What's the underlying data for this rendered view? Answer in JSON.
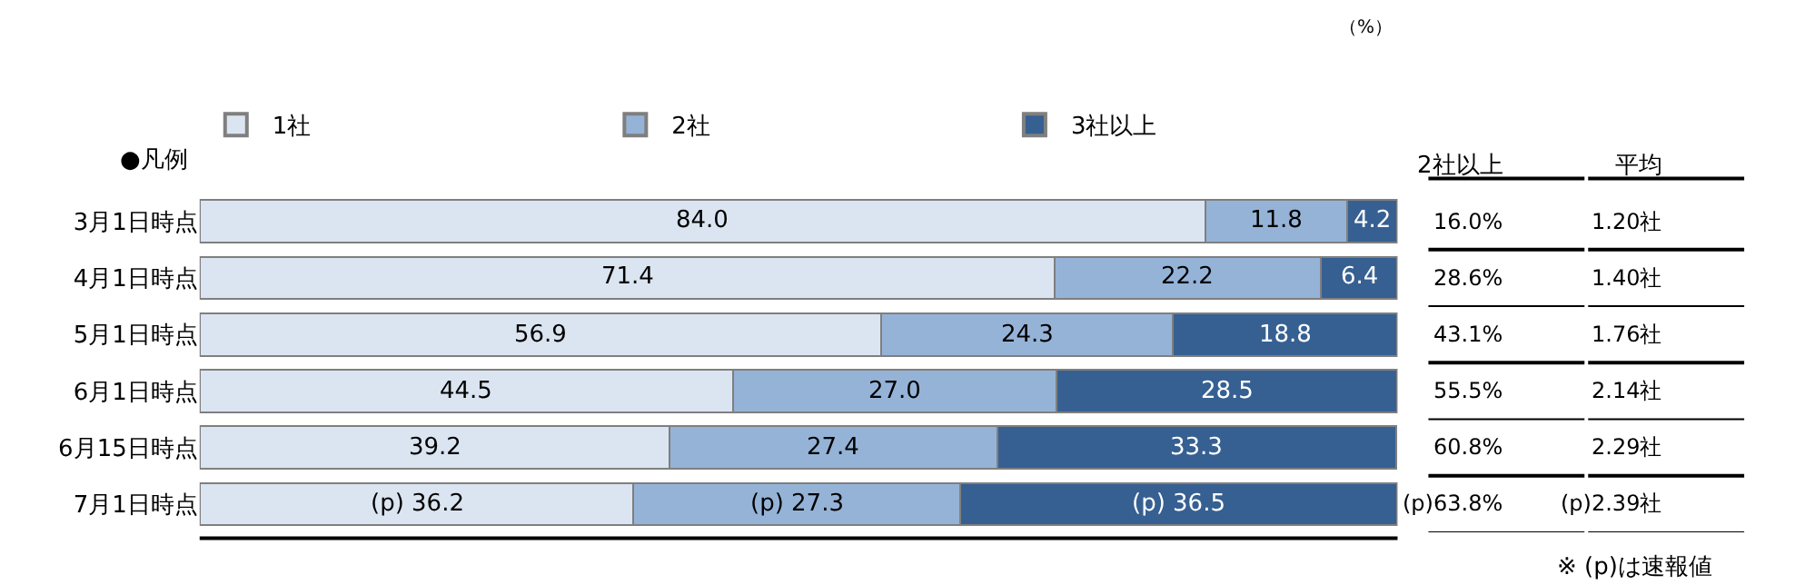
{
  "chart_data": [
    {
      "type": "bar",
      "orientation": "horizontal",
      "stacked": true,
      "xlabel": "（%）",
      "legend": "top",
      "tick_labels": "y",
      "xlim": [
        0,
        100
      ],
      "categories": [
        "3月1日時点",
        "4月1日時点",
        "5月1日時点",
        "6月1日時点",
        "6月15日時点",
        "7月1日時点"
      ],
      "series": [
        {
          "name": "1社",
          "color": "#dbe5f1",
          "values": [
            84.0,
            71.4,
            56.9,
            44.5,
            39.2,
            36.2
          ],
          "value_labels": [
            "84.0",
            "71.4",
            "56.9",
            "44.5",
            "39.2",
            "(p) 36.2"
          ]
        },
        {
          "name": "2社",
          "color": "#95b3d7",
          "values": [
            11.8,
            22.2,
            24.3,
            27.0,
            27.4,
            27.3
          ],
          "value_labels": [
            "11.8",
            "22.2",
            "24.3",
            "27.0",
            "27.4",
            "(p) 27.3"
          ]
        },
        {
          "name": "3社以上",
          "color": "#366092",
          "values": [
            4.2,
            6.4,
            18.8,
            28.5,
            33.3,
            36.5
          ],
          "value_labels": [
            "4.2",
            "6.4",
            "18.8",
            "28.5",
            "33.3",
            "(p) 36.5"
          ]
        }
      ],
      "annotations": [
        "●凡例",
        "※ (p)は速報値"
      ]
    },
    {
      "type": "other",
      "annotations": [
        "2社以上",
        "平均",
        "16.0%",
        "1.20社",
        "28.6%",
        "1.40社",
        "43.1%",
        "1.76社",
        "55.5%",
        "2.14社",
        "60.8%",
        "2.29社",
        "(p)63.8%",
        "(p)2.39社"
      ]
    }
  ]
}
